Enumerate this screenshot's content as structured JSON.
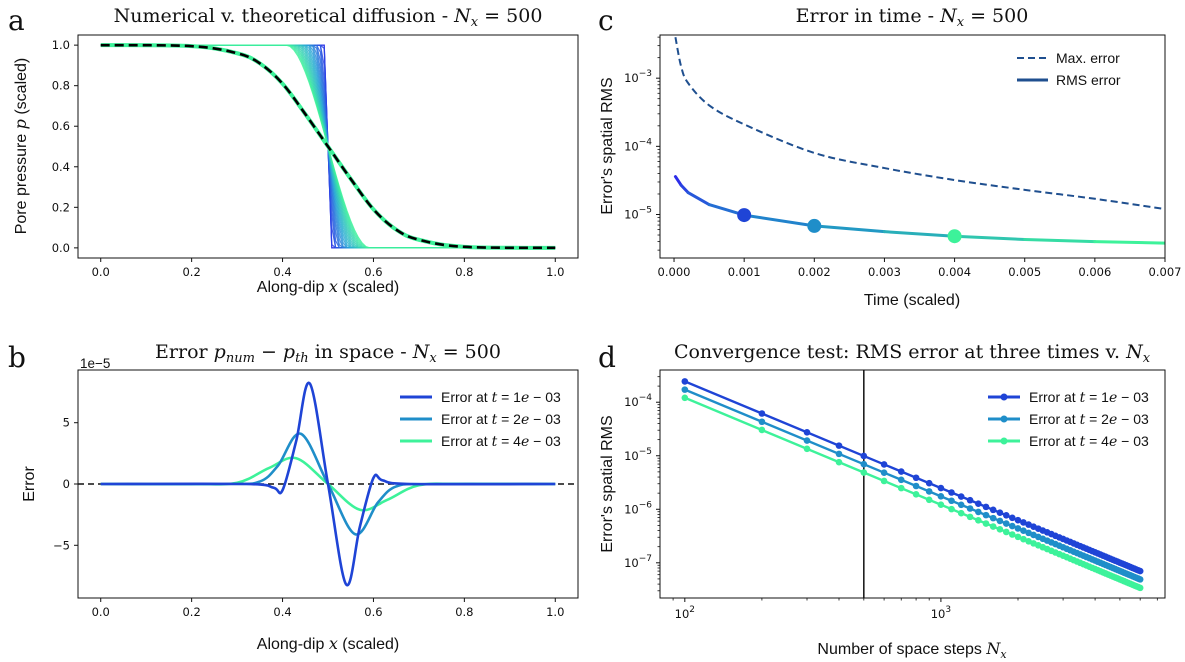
{
  "chart_data": [
    {
      "panel": "a",
      "type": "line",
      "title": "Numerical v. theoretical diffusion - N_x = 500",
      "xlabel": "Along-dip x (scaled)",
      "ylabel": "Pore pressure p (scaled)",
      "xlim": [
        -0.05,
        1.05
      ],
      "ylim": [
        -0.05,
        1.05
      ],
      "xticks": [
        "0.0",
        "0.2",
        "0.4",
        "0.6",
        "0.8",
        "1.0"
      ],
      "yticks": [
        "0.0",
        "0.2",
        "0.4",
        "0.6",
        "0.8",
        "1.0"
      ],
      "series": [
        {
          "curve": "theory-dashed",
          "color": "#000000",
          "x": [
            0.0,
            0.2,
            0.3,
            0.35,
            0.4,
            0.45,
            0.5,
            0.55,
            0.6,
            0.65,
            0.7,
            0.8,
            1.0
          ],
          "y": [
            1.0,
            0.995,
            0.96,
            0.91,
            0.81,
            0.66,
            0.5,
            0.34,
            0.19,
            0.09,
            0.04,
            0.005,
            0.0
          ]
        },
        {
          "curve": "numerical-fan",
          "colors": [
            "#2d2de8",
            "#2aa7d6",
            "#3df29a"
          ],
          "x": [
            0.0,
            0.49,
            0.5,
            0.51,
            1.0
          ],
          "y": [
            1.0,
            1.0,
            0.5,
            0.0,
            0.0
          ]
        }
      ]
    },
    {
      "panel": "b",
      "type": "line",
      "title": "Error p_num − p_th in space - N_x = 500",
      "xlabel": "Along-dip x (scaled)",
      "ylabel": "Error",
      "multiplier": "1e−5",
      "xlim": [
        -0.05,
        1.05
      ],
      "ylim": [
        -9.3,
        9.3
      ],
      "xticks": [
        "0.0",
        "0.2",
        "0.4",
        "0.6",
        "0.8",
        "1.0"
      ],
      "yticks": [
        "−5",
        "0",
        "5"
      ],
      "legend": "top-right",
      "series": [
        {
          "name": "Error at t = 1e − 03",
          "color": "#1f44d6",
          "x": [
            0.0,
            0.32,
            0.38,
            0.4,
            0.43,
            0.46,
            0.5,
            0.54,
            0.57,
            0.6,
            0.62,
            0.68,
            1.0
          ],
          "y": [
            0.0,
            0.0,
            -0.3,
            -0.5,
            3.5,
            8.2,
            0.0,
            -8.2,
            -3.5,
            0.5,
            0.3,
            0.0,
            0.0
          ]
        },
        {
          "name": "Error at t = 2e − 03",
          "color": "#1f8ec9",
          "x": [
            0.0,
            0.28,
            0.35,
            0.39,
            0.44,
            0.5,
            0.56,
            0.61,
            0.65,
            0.72,
            1.0
          ],
          "y": [
            0.0,
            0.0,
            0.2,
            1.5,
            4.1,
            0.0,
            -4.1,
            -1.5,
            -0.2,
            0.0,
            0.0
          ]
        },
        {
          "name": "Error at t = 4e − 03",
          "color": "#3df29a",
          "x": [
            0.0,
            0.2,
            0.3,
            0.37,
            0.43,
            0.5,
            0.57,
            0.63,
            0.7,
            0.8,
            1.0
          ],
          "y": [
            0.0,
            0.0,
            0.1,
            1.3,
            2.1,
            0.0,
            -2.1,
            -1.3,
            -0.1,
            0.0,
            0.0
          ]
        }
      ]
    },
    {
      "panel": "c",
      "type": "line",
      "title": "Error in time - N_x = 500",
      "xlabel": "Time (scaled)",
      "ylabel": "Error's spatial RMS",
      "yscale": "log",
      "xlim": [
        -0.0002,
        0.007
      ],
      "ylim": [
        2.3e-06,
        0.0043
      ],
      "xticks": [
        "0.000",
        "0.001",
        "0.002",
        "0.003",
        "0.004",
        "0.005",
        "0.006",
        "0.007"
      ],
      "yticks": [
        "10^-5",
        "10^-4",
        "10^-3"
      ],
      "legend": "top-right",
      "series": [
        {
          "name": "Max. error",
          "style": "dashed",
          "color": "#1f4f8f",
          "x": [
            2e-05,
            0.0001,
            0.0002,
            0.0005,
            0.001,
            0.002,
            0.003,
            0.004,
            0.005,
            0.006,
            0.007
          ],
          "y": [
            0.004,
            0.0015,
            0.00085,
            0.0004,
            0.00021,
            8e-05,
            4.8e-05,
            3.2e-05,
            2.3e-05,
            1.7e-05,
            1.2e-05
          ]
        },
        {
          "name": "RMS error",
          "style": "solid",
          "color": "#1f4f8f",
          "x": [
            2e-05,
            0.0001,
            0.0002,
            0.0005,
            0.001,
            0.002,
            0.003,
            0.004,
            0.005,
            0.006,
            0.007
          ],
          "y": [
            3.6e-05,
            2.7e-05,
            2.1e-05,
            1.4e-05,
            9.8e-06,
            6.8e-06,
            5.6e-06,
            4.8e-06,
            4.3e-06,
            4e-06,
            3.8e-06
          ]
        },
        {
          "name": "markers",
          "x": [
            0.001,
            0.002,
            0.004
          ],
          "y": [
            9.8e-06,
            6.8e-06,
            4.8e-06
          ],
          "colors": [
            "#1f44d6",
            "#1f8ec9",
            "#3df29a"
          ]
        }
      ]
    },
    {
      "panel": "d",
      "type": "line",
      "title": "Convergence test: RMS error at three times v. N_x",
      "xlabel": "Number of space steps N_x",
      "ylabel": "Error's spatial RMS",
      "xscale": "log",
      "yscale": "log",
      "xlim": [
        80,
        7500
      ],
      "ylim": [
        2.2e-08,
        0.0004
      ],
      "xticks": [
        "10^2",
        "10^3"
      ],
      "yticks": [
        "10^-7",
        "10^-6",
        "10^-5",
        "10^-4"
      ],
      "vline": 500,
      "legend": "top-right",
      "series": [
        {
          "name": "Error at t = 1e − 03",
          "color": "#1f44d6",
          "x0": 100,
          "x1": 6000,
          "y0": 0.000245,
          "y1": 7e-08
        },
        {
          "name": "Error at t = 2e − 03",
          "color": "#1f8ec9",
          "x0": 100,
          "x1": 6000,
          "y0": 0.000172,
          "y1": 4.9e-08
        },
        {
          "name": "Error at t = 4e − 03",
          "color": "#3df29a",
          "x0": 100,
          "x1": 6000,
          "y0": 0.000121,
          "y1": 3.4e-08
        }
      ]
    }
  ],
  "panel_labels": [
    "a",
    "b",
    "c",
    "d"
  ]
}
